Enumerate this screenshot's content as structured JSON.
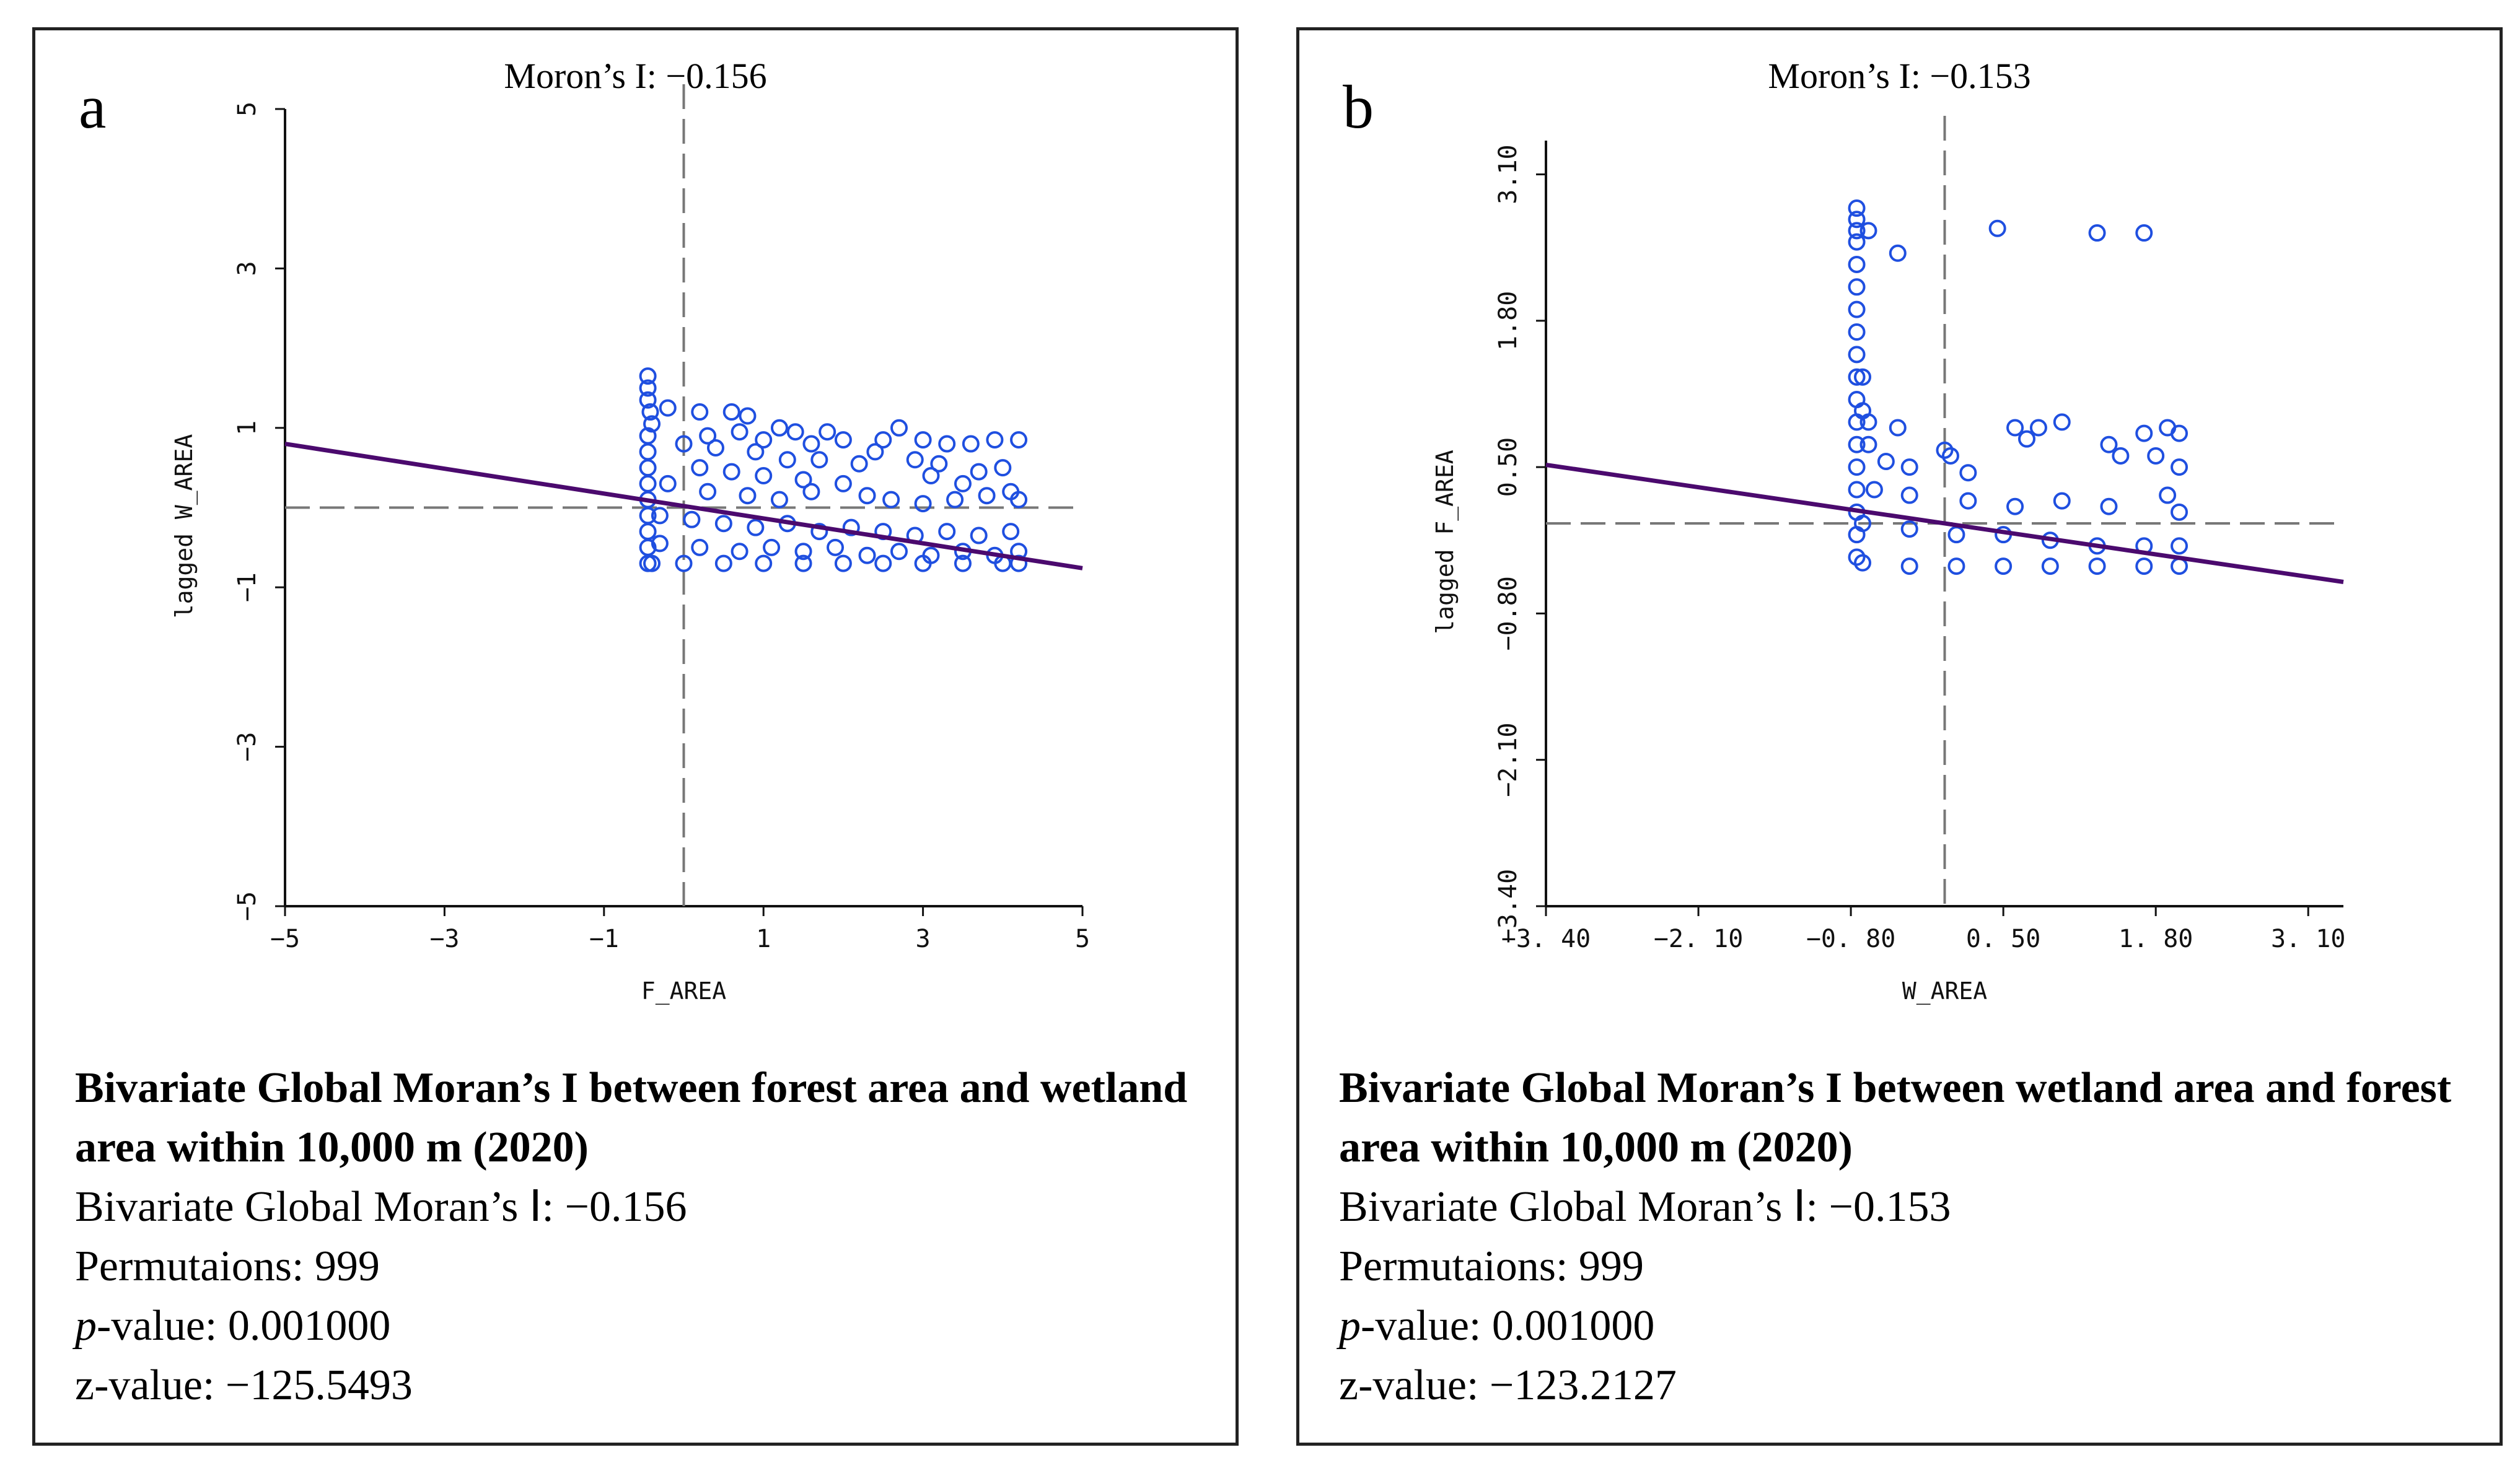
{
  "panels": [
    {
      "letter": "a",
      "plot_title": "Moron’s I: −0.156",
      "caption_title": "Bivariate Global Moran’s I between forest area and wetland area within 10,000 m (2020)",
      "moran_label": "Bivariate Global Moran’s Ⅰ: −0.156",
      "permutations": "Permutaions: 999",
      "p_label": "p",
      "p_value": "-value: 0.001000",
      "z_value": "z-value: −125.5493"
    },
    {
      "letter": "b",
      "plot_title": "Moron’s I: −0.153",
      "caption_title": "Bivariate Global Moran’s I between wetland area and forest area within 10,000 m (2020)",
      "moran_label": "Bivariate Global Moran’s Ⅰ: −0.153",
      "permutations": "Permutaions: 999",
      "p_label": "p",
      "p_value": "-value: 0.001000",
      "z_value": "z-value: −123.2127"
    }
  ],
  "chart_data": [
    {
      "type": "scatter",
      "title": "Moron’s I: −0.156",
      "xlabel": "F_AREA",
      "ylabel": "lagged W_AREA",
      "xlim": [
        -5,
        5
      ],
      "ylim": [
        -5,
        5
      ],
      "xticks": [
        -5,
        -3,
        -1,
        1,
        3,
        5
      ],
      "xtick_labels": [
        "−5",
        "−3",
        "−1",
        "1",
        "3",
        "5"
      ],
      "yticks": [
        -5,
        -3,
        -1,
        1,
        3,
        5
      ],
      "ytick_labels": [
        "−5",
        "−3",
        "−1",
        "1",
        "3",
        "5"
      ],
      "ref_x": 0,
      "ref_y": 0,
      "regression_line": {
        "x": [
          -5,
          5
        ],
        "y": [
          0.8,
          -0.76
        ],
        "slope": -0.156
      },
      "points": [
        [
          -0.45,
          1.65
        ],
        [
          -0.45,
          1.5
        ],
        [
          -0.45,
          1.35
        ],
        [
          -0.42,
          1.2
        ],
        [
          -0.4,
          1.05
        ],
        [
          -0.45,
          0.9
        ],
        [
          -0.45,
          0.7
        ],
        [
          -0.45,
          0.5
        ],
        [
          -0.45,
          0.3
        ],
        [
          -0.45,
          0.1
        ],
        [
          -0.45,
          -0.1
        ],
        [
          -0.45,
          -0.3
        ],
        [
          -0.45,
          -0.5
        ],
        [
          -0.45,
          -0.7
        ],
        [
          -0.2,
          1.25
        ],
        [
          0.2,
          1.2
        ],
        [
          0.6,
          1.2
        ],
        [
          0.8,
          1.15
        ],
        [
          1.2,
          1.0
        ],
        [
          1.4,
          0.95
        ],
        [
          1.8,
          0.95
        ],
        [
          2.0,
          0.85
        ],
        [
          2.7,
          1.0
        ],
        [
          2.5,
          0.85
        ],
        [
          3.0,
          0.85
        ],
        [
          3.3,
          0.8
        ],
        [
          3.6,
          0.8
        ],
        [
          3.9,
          0.85
        ],
        [
          4.2,
          0.85
        ],
        [
          0.0,
          0.8
        ],
        [
          0.4,
          0.75
        ],
        [
          0.9,
          0.7
        ],
        [
          1.3,
          0.6
        ],
        [
          1.7,
          0.6
        ],
        [
          2.2,
          0.55
        ],
        [
          0.2,
          0.5
        ],
        [
          0.6,
          0.45
        ],
        [
          1.0,
          0.4
        ],
        [
          1.5,
          0.35
        ],
        [
          2.0,
          0.3
        ],
        [
          3.1,
          0.4
        ],
        [
          3.5,
          0.3
        ],
        [
          4.1,
          0.2
        ],
        [
          -0.2,
          0.3
        ],
        [
          0.3,
          0.2
        ],
        [
          0.8,
          0.15
        ],
        [
          1.2,
          0.1
        ],
        [
          1.6,
          0.2
        ],
        [
          2.3,
          0.15
        ],
        [
          2.6,
          0.1
        ],
        [
          3.0,
          0.05
        ],
        [
          3.4,
          0.1
        ],
        [
          3.8,
          0.15
        ],
        [
          4.2,
          0.1
        ],
        [
          -0.3,
          -0.1
        ],
        [
          0.1,
          -0.15
        ],
        [
          0.5,
          -0.2
        ],
        [
          0.9,
          -0.25
        ],
        [
          1.3,
          -0.2
        ],
        [
          1.7,
          -0.3
        ],
        [
          2.1,
          -0.25
        ],
        [
          2.5,
          -0.3
        ],
        [
          2.9,
          -0.35
        ],
        [
          3.3,
          -0.3
        ],
        [
          3.7,
          -0.35
        ],
        [
          4.1,
          -0.3
        ],
        [
          -0.3,
          -0.45
        ],
        [
          0.2,
          -0.5
        ],
        [
          0.7,
          -0.55
        ],
        [
          1.1,
          -0.5
        ],
        [
          1.5,
          -0.55
        ],
        [
          1.9,
          -0.5
        ],
        [
          2.3,
          -0.6
        ],
        [
          2.7,
          -0.55
        ],
        [
          3.1,
          -0.6
        ],
        [
          3.5,
          -0.55
        ],
        [
          3.9,
          -0.6
        ],
        [
          4.2,
          -0.55
        ],
        [
          -0.4,
          -0.7
        ],
        [
          0.0,
          -0.7
        ],
        [
          0.5,
          -0.7
        ],
        [
          1.0,
          -0.7
        ],
        [
          1.5,
          -0.7
        ],
        [
          2.0,
          -0.7
        ],
        [
          2.5,
          -0.7
        ],
        [
          3.0,
          -0.7
        ],
        [
          3.5,
          -0.7
        ],
        [
          4.0,
          -0.7
        ],
        [
          4.2,
          -0.7
        ],
        [
          0.3,
          0.9
        ],
        [
          0.7,
          0.95
        ],
        [
          1.0,
          0.85
        ],
        [
          1.6,
          0.8
        ],
        [
          2.4,
          0.7
        ],
        [
          2.9,
          0.6
        ],
        [
          3.2,
          0.55
        ],
        [
          3.7,
          0.45
        ],
        [
          4.0,
          0.5
        ]
      ]
    },
    {
      "type": "scatter",
      "title": "Moron’s I: −0.153",
      "xlabel": "W_AREA",
      "ylabel": "lagged F_AREA",
      "xlim": [
        -3.4,
        3.4
      ],
      "ylim": [
        -3.4,
        3.4
      ],
      "xticks": [
        -3.4,
        -2.1,
        -0.8,
        0.5,
        1.8,
        3.1
      ],
      "xtick_labels": [
        "−3. 40",
        "−2. 10",
        "−0. 80",
        "0. 50",
        "1. 80",
        "3. 10"
      ],
      "yticks": [
        -3.4,
        -2.1,
        -0.8,
        0.5,
        1.8,
        3.1
      ],
      "ytick_labels": [
        "−3.40",
        "−2.10",
        "−0.80",
        "0.50",
        "1.80",
        "3.10"
      ],
      "ref_x": 0,
      "ref_y": 0,
      "regression_line": {
        "x": [
          -3.4,
          3.4
        ],
        "y": [
          0.52,
          -0.52
        ],
        "slope": -0.153
      },
      "points": [
        [
          -0.75,
          2.8
        ],
        [
          -0.75,
          2.7
        ],
        [
          -0.75,
          2.6
        ],
        [
          -0.75,
          2.5
        ],
        [
          -0.75,
          2.3
        ],
        [
          -0.75,
          2.1
        ],
        [
          -0.75,
          1.9
        ],
        [
          -0.75,
          1.7
        ],
        [
          -0.75,
          1.5
        ],
        [
          -0.75,
          1.3
        ],
        [
          -0.75,
          1.1
        ],
        [
          -0.75,
          0.9
        ],
        [
          -0.75,
          0.7
        ],
        [
          -0.75,
          0.5
        ],
        [
          -0.75,
          0.3
        ],
        [
          -0.75,
          0.1
        ],
        [
          -0.75,
          -0.1
        ],
        [
          -0.75,
          -0.3
        ],
        [
          -0.65,
          2.6
        ],
        [
          -0.4,
          2.4
        ],
        [
          0.45,
          2.62
        ],
        [
          1.3,
          2.58
        ],
        [
          1.7,
          2.58
        ],
        [
          -0.7,
          1.3
        ],
        [
          -0.7,
          1.0
        ],
        [
          -0.65,
          0.9
        ],
        [
          -0.4,
          0.85
        ],
        [
          -0.65,
          0.7
        ],
        [
          0.0,
          0.65
        ],
        [
          0.05,
          0.6
        ],
        [
          -0.5,
          0.55
        ],
        [
          -0.3,
          0.5
        ],
        [
          0.2,
          0.45
        ],
        [
          0.6,
          0.85
        ],
        [
          0.8,
          0.85
        ],
        [
          0.7,
          0.75
        ],
        [
          1.0,
          0.9
        ],
        [
          1.4,
          0.7
        ],
        [
          1.5,
          0.6
        ],
        [
          1.7,
          0.8
        ],
        [
          1.9,
          0.85
        ],
        [
          2.0,
          0.8
        ],
        [
          1.8,
          0.6
        ],
        [
          2.0,
          0.5
        ],
        [
          -0.6,
          0.3
        ],
        [
          -0.3,
          0.25
        ],
        [
          0.2,
          0.2
        ],
        [
          0.6,
          0.15
        ],
        [
          1.0,
          0.2
        ],
        [
          1.4,
          0.15
        ],
        [
          1.9,
          0.25
        ],
        [
          2.0,
          0.1
        ],
        [
          -0.7,
          0.0
        ],
        [
          -0.3,
          -0.05
        ],
        [
          0.1,
          -0.1
        ],
        [
          0.5,
          -0.1
        ],
        [
          0.9,
          -0.15
        ],
        [
          1.3,
          -0.2
        ],
        [
          1.7,
          -0.2
        ],
        [
          2.0,
          -0.2
        ],
        [
          -0.7,
          -0.35
        ],
        [
          -0.3,
          -0.38
        ],
        [
          0.1,
          -0.38
        ],
        [
          0.5,
          -0.38
        ],
        [
          0.9,
          -0.38
        ],
        [
          1.3,
          -0.38
        ],
        [
          1.7,
          -0.38
        ],
        [
          2.0,
          -0.38
        ]
      ]
    }
  ]
}
